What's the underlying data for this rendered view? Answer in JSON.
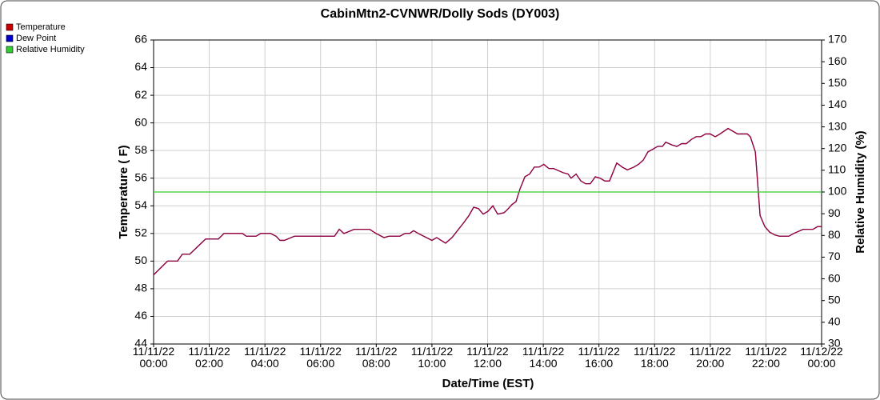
{
  "chart_data": {
    "type": "line",
    "title": "CabinMtn2-CVNWR/Dolly Sods (DY003)",
    "x_label": "Date/Time (EST)",
    "y_label": "Temperature ( F)",
    "y2_label": "Relative Humidity (%)",
    "xlim": [
      0,
      24
    ],
    "xticks": [
      {
        "value": 0,
        "label": "11/11/22 00:00"
      },
      {
        "value": 2,
        "label": "11/11/22 02:00"
      },
      {
        "value": 4,
        "label": "11/11/22 04:00"
      },
      {
        "value": 6,
        "label": "11/11/22 06:00"
      },
      {
        "value": 8,
        "label": "11/11/22 08:00"
      },
      {
        "value": 10,
        "label": "11/11/22 10:00"
      },
      {
        "value": 12,
        "label": "11/11/22 12:00"
      },
      {
        "value": 14,
        "label": "11/11/22 14:00"
      },
      {
        "value": 16,
        "label": "11/11/22 16:00"
      },
      {
        "value": 18,
        "label": "11/11/22 18:00"
      },
      {
        "value": 20,
        "label": "11/11/22 20:00"
      },
      {
        "value": 22,
        "label": "11/11/22 22:00"
      },
      {
        "value": 24,
        "label": "11/12/22 00:00"
      }
    ],
    "ylim": [
      44,
      66
    ],
    "yticks": [
      44,
      46,
      48,
      50,
      52,
      54,
      56,
      58,
      60,
      62,
      64,
      66
    ],
    "y2lim": [
      30,
      170
    ],
    "y2ticks": [
      30,
      40,
      50,
      60,
      70,
      80,
      90,
      100,
      110,
      120,
      130,
      140,
      150,
      160,
      170
    ],
    "grid": true,
    "legend_position": "top-left",
    "series": [
      {
        "name": "Temperature",
        "color": "#cc0000",
        "x": [
          0,
          0.5,
          0.86,
          1.03,
          1.3,
          1.87,
          2.33,
          2.53,
          3.19,
          3.33,
          3.68,
          3.85,
          4.2,
          4.4,
          4.54,
          4.7,
          5.06,
          6.5,
          6.67,
          6.84,
          7.21,
          7.76,
          7.99,
          8.28,
          8.45,
          8.85,
          9.03,
          9.2,
          9.34,
          9.51,
          10,
          10.17,
          10.49,
          10.72,
          11.15,
          11.33,
          11.5,
          11.67,
          11.84,
          12.01,
          12.19,
          12.36,
          12.59,
          12.7,
          12.88,
          13.02,
          13.16,
          13.34,
          13.51,
          13.68,
          13.85,
          14.02,
          14.2,
          14.37,
          14.71,
          14.89,
          15,
          15.18,
          15.35,
          15.52,
          15.69,
          15.87,
          16.04,
          16.21,
          16.38,
          16.64,
          16.84,
          17.02,
          17.25,
          17.42,
          17.59,
          17.76,
          17.94,
          18.11,
          18.28,
          18.4,
          18.63,
          18.8,
          18.97,
          19.14,
          19.32,
          19.49,
          19.66,
          19.83,
          20,
          20.18,
          20.35,
          20.64,
          20.98,
          21.33,
          21.44,
          21.62,
          21.79,
          21.96,
          22.13,
          22.31,
          22.48,
          22.82,
          23,
          23.34,
          23.69,
          23.86,
          24
        ],
        "values": [
          49,
          50,
          50,
          50.5,
          50.5,
          51.6,
          51.6,
          52,
          52,
          51.8,
          51.8,
          52,
          52,
          51.8,
          51.5,
          51.5,
          51.8,
          51.8,
          52.3,
          52,
          52.3,
          52.3,
          52,
          51.7,
          51.8,
          51.8,
          52,
          52,
          52.2,
          52,
          51.5,
          51.7,
          51.3,
          51.7,
          52.8,
          53.3,
          53.9,
          53.8,
          53.4,
          53.6,
          54,
          53.4,
          53.5,
          53.7,
          54.1,
          54.3,
          55.2,
          56.1,
          56.3,
          56.8,
          56.8,
          57,
          56.7,
          56.7,
          56.4,
          56.3,
          56,
          56.3,
          55.8,
          55.6,
          55.6,
          56.1,
          56,
          55.8,
          55.8,
          57.1,
          56.8,
          56.6,
          56.8,
          57,
          57.3,
          57.9,
          58.1,
          58.3,
          58.3,
          58.6,
          58.4,
          58.3,
          58.5,
          58.5,
          58.8,
          59,
          59,
          59.2,
          59.2,
          59,
          59.2,
          59.6,
          59.2,
          59.2,
          59,
          57.9,
          53.3,
          52.5,
          52.1,
          51.9,
          51.8,
          51.8,
          52,
          52.3,
          52.3,
          52.5,
          52.5
        ]
      },
      {
        "name": "Dew Point",
        "color": "#0000cc",
        "x": [
          0,
          0.5,
          0.86,
          1.03,
          1.3,
          1.87,
          2.33,
          2.53,
          3.19,
          3.33,
          3.68,
          3.85,
          4.2,
          4.4,
          4.54,
          4.7,
          5.06,
          6.5,
          6.67,
          6.84,
          7.21,
          7.76,
          7.99,
          8.28,
          8.45,
          8.85,
          9.03,
          9.2,
          9.34,
          9.51,
          10,
          10.17,
          10.49,
          10.72,
          11.15,
          11.33,
          11.5,
          11.67,
          11.84,
          12.01,
          12.19,
          12.36,
          12.59,
          12.7,
          12.88,
          13.02,
          13.16,
          13.34,
          13.51,
          13.68,
          13.85,
          14.02,
          14.2,
          14.37,
          14.71,
          14.89,
          15,
          15.18,
          15.35,
          15.52,
          15.69,
          15.87,
          16.04,
          16.21,
          16.38,
          16.64,
          16.84,
          17.02,
          17.25,
          17.42,
          17.59,
          17.76,
          17.94,
          18.11,
          18.28,
          18.4,
          18.63,
          18.8,
          18.97,
          19.14,
          19.32,
          19.49,
          19.66,
          19.83,
          20,
          20.18,
          20.35,
          20.64,
          20.98,
          21.33,
          21.44,
          21.62,
          21.79,
          21.96,
          22.13,
          22.31,
          22.48,
          22.82,
          23,
          23.34,
          23.69,
          23.86,
          24
        ],
        "values": [
          49,
          50,
          50,
          50.5,
          50.5,
          51.6,
          51.6,
          52,
          52,
          51.8,
          51.8,
          52,
          52,
          51.8,
          51.5,
          51.5,
          51.8,
          51.8,
          52.3,
          52,
          52.3,
          52.3,
          52,
          51.7,
          51.8,
          51.8,
          52,
          52,
          52.2,
          52,
          51.5,
          51.7,
          51.3,
          51.7,
          52.8,
          53.3,
          53.9,
          53.8,
          53.4,
          53.6,
          54,
          53.4,
          53.5,
          53.7,
          54.1,
          54.3,
          55.2,
          56.1,
          56.3,
          56.8,
          56.8,
          57,
          56.7,
          56.7,
          56.4,
          56.3,
          56,
          56.3,
          55.8,
          55.6,
          55.6,
          56.1,
          56,
          55.8,
          55.8,
          57.1,
          56.8,
          56.6,
          56.8,
          57,
          57.3,
          57.9,
          58.1,
          58.3,
          58.3,
          58.6,
          58.4,
          58.3,
          58.5,
          58.5,
          58.8,
          59,
          59,
          59.2,
          59.2,
          59,
          59.2,
          59.6,
          59.2,
          59.2,
          59,
          57.9,
          53.3,
          52.5,
          52.1,
          51.9,
          51.8,
          51.8,
          52,
          52.3,
          52.3,
          52.5,
          52.5
        ]
      },
      {
        "name": "Relative Humidity",
        "color": "#33cc33",
        "axis": "y2",
        "x": [
          0,
          24
        ],
        "values": [
          100,
          100
        ]
      }
    ]
  }
}
